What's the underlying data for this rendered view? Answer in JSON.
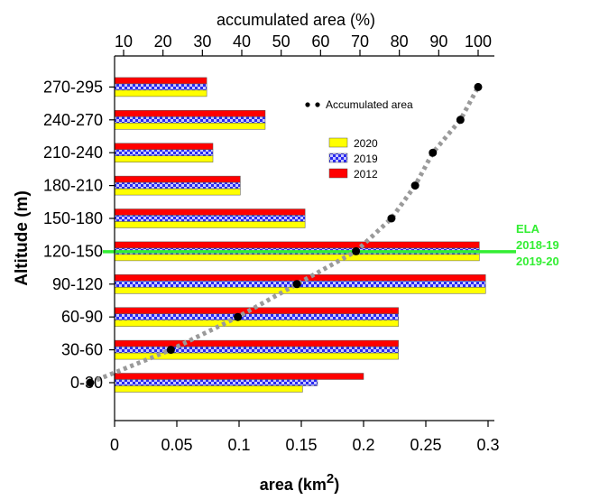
{
  "chart_data": {
    "type": "bar",
    "orientation": "horizontal",
    "categories": [
      "0-30",
      "30-60",
      "60-90",
      "90-120",
      "120-150",
      "150-180",
      "180-210",
      "210-240",
      "240-270",
      "270-295"
    ],
    "series": [
      {
        "name": "2012",
        "color": "#ff0000",
        "values": [
          0.2,
          0.228,
          0.228,
          0.298,
          0.293,
          0.153,
          0.101,
          0.079,
          0.121,
          0.074
        ]
      },
      {
        "name": "2019",
        "color": "#3333ff",
        "pattern": "checker",
        "values": [
          0.163,
          0.228,
          0.228,
          0.298,
          0.293,
          0.153,
          0.101,
          0.079,
          0.121,
          0.074
        ]
      },
      {
        "name": "2020",
        "color": "#ffff00",
        "values": [
          0.151,
          0.228,
          0.228,
          0.298,
          0.293,
          0.153,
          0.101,
          0.079,
          0.121,
          0.074
        ]
      }
    ],
    "accumulated": {
      "name": "Accumulated area",
      "values_percent": [
        1.5,
        22.0,
        39.0,
        54.0,
        69.0,
        78.0,
        84.0,
        88.5,
        95.5,
        100.0
      ]
    },
    "xlabel": "area (km",
    "xlabel_sup": "2",
    "xlabel_close": ")",
    "ylabel": "Altitude (m)",
    "x2label": "accumulated area (%)",
    "xlim": [
      0,
      0.3
    ],
    "x2lim": [
      10,
      100
    ],
    "xticks": [
      "0",
      "0.05",
      "0.1",
      "0.15",
      "0.2",
      "0.25",
      "0.3"
    ],
    "xtick_values": [
      0,
      0.05,
      0.1,
      0.15,
      0.2,
      0.25,
      0.3
    ],
    "x2ticks": [
      "10",
      "20",
      "30",
      "40",
      "50",
      "60",
      "70",
      "80",
      "90",
      "100"
    ],
    "x2tick_values": [
      10,
      20,
      30,
      40,
      50,
      60,
      70,
      80,
      90,
      100
    ],
    "ela": {
      "label_lines": [
        "ELA",
        "2018-19",
        "2019-20"
      ],
      "category": "120-150",
      "color": "#33ee33"
    },
    "legend": {
      "placement": "top-right",
      "order": [
        "2020",
        "2019",
        "2012"
      ]
    },
    "grid": false
  }
}
